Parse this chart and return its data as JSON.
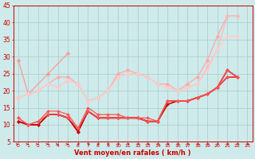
{
  "x": [
    0,
    1,
    2,
    3,
    4,
    5,
    6,
    7,
    8,
    9,
    10,
    11,
    12,
    13,
    14,
    15,
    16,
    17,
    18,
    19,
    20,
    21,
    22,
    23
  ],
  "lines": [
    {
      "y": [
        29,
        19,
        null,
        25,
        null,
        31,
        null,
        null,
        null,
        null,
        null,
        null,
        null,
        null,
        null,
        null,
        null,
        null,
        null,
        null,
        null,
        null,
        null,
        null
      ],
      "color": "#ff9999",
      "lw": 0.9,
      "ms": 2.5
    },
    {
      "y": [
        18,
        19,
        20,
        22,
        24,
        24,
        22,
        17,
        18,
        20,
        25,
        26,
        25,
        24,
        22,
        22,
        20,
        22,
        24,
        29,
        36,
        42,
        42,
        null
      ],
      "color": "#ffaaaa",
      "lw": 0.9,
      "ms": 2.5
    },
    {
      "y": [
        18,
        19,
        20,
        22,
        21,
        23,
        22,
        17,
        18,
        20,
        24,
        25,
        25,
        24,
        22,
        21,
        20,
        21,
        22,
        27,
        32,
        42,
        42,
        null
      ],
      "color": "#ffbbbb",
      "lw": 0.9,
      "ms": 2.5
    },
    {
      "y": [
        18,
        19,
        20,
        22,
        21,
        23,
        22,
        17,
        18,
        20,
        24,
        25,
        25,
        24,
        22,
        21,
        20,
        21,
        22,
        26,
        32,
        36,
        36,
        null
      ],
      "color": "#ffcccc",
      "lw": 0.9,
      "ms": 2.5
    },
    {
      "y": [
        11,
        10,
        10,
        13,
        13,
        12,
        8,
        14,
        12,
        12,
        12,
        12,
        12,
        11,
        11,
        17,
        17,
        17,
        18,
        19,
        21,
        26,
        24,
        null
      ],
      "color": "#cc0000",
      "lw": 1.2,
      "ms": 2.0
    },
    {
      "y": [
        11,
        10,
        10,
        13,
        13,
        12,
        8,
        14,
        12,
        12,
        12,
        12,
        12,
        11,
        11,
        16,
        17,
        17,
        18,
        19,
        21,
        24,
        24,
        null
      ],
      "color": "#cc0000",
      "lw": 1.2,
      "ms": 2.0
    },
    {
      "y": [
        12,
        10,
        11,
        13,
        13,
        12,
        9,
        14,
        12,
        12,
        12,
        12,
        12,
        11,
        11,
        17,
        17,
        17,
        18,
        19,
        21,
        24,
        24,
        null
      ],
      "color": "#ff5555",
      "lw": 0.9,
      "ms": 2.0
    },
    {
      "y": [
        12,
        10,
        11,
        14,
        14,
        13,
        9,
        15,
        13,
        13,
        13,
        12,
        12,
        12,
        11,
        17,
        17,
        17,
        18,
        19,
        21,
        26,
        24,
        null
      ],
      "color": "#ff5555",
      "lw": 0.9,
      "ms": 2.0
    }
  ],
  "bg_color": "#ceeaea",
  "grid_color": "#aacccc",
  "xlabel": "Vent moyen/en rafales ( km/h )",
  "ylim": [
    5,
    45
  ],
  "xlim": [
    -0.5,
    23.5
  ],
  "yticks": [
    5,
    10,
    15,
    20,
    25,
    30,
    35,
    40,
    45
  ],
  "xticks": [
    0,
    1,
    2,
    3,
    4,
    5,
    6,
    7,
    8,
    9,
    10,
    11,
    12,
    13,
    14,
    15,
    16,
    17,
    18,
    19,
    20,
    21,
    22,
    23
  ],
  "xlabel_color": "#cc0000",
  "tick_color": "#cc0000",
  "spine_color": "#cc0000",
  "arrow_color": "#cc0000"
}
